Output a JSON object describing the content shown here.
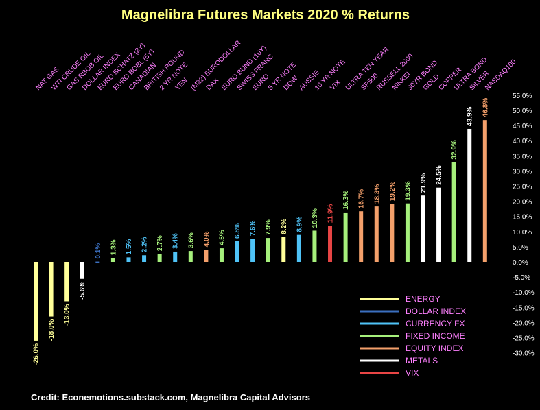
{
  "chart_data": {
    "type": "bar",
    "title": "Magnelibra Futures Markets 2020 % Returns",
    "credit": "Credit: Econemotions.substack.com, Magnelibra Capital Advisors",
    "ylim": [
      -30,
      55
    ],
    "yticks": [
      -30,
      -25,
      -20,
      -15,
      -10,
      -5,
      0,
      5,
      10,
      15,
      20,
      25,
      30,
      35,
      40,
      45,
      50,
      55
    ],
    "y_axis_position": "right",
    "grid": false,
    "legend_placement": "bottom-right",
    "colors": {
      "ENERGY": "#ffff99",
      "DOLLAR INDEX": "#3b6fbf",
      "CURRENCY FX": "#4fc3f7",
      "FIXED INCOME": "#a6f07c",
      "EQUITY INDEX": "#f4a06b",
      "METALS": "#ffffff",
      "VIX": "#e84545"
    },
    "legend": [
      "ENERGY",
      "DOLLAR INDEX",
      "CURRENCY FX",
      "FIXED INCOME",
      "EQUITY INDEX",
      "METALS",
      "VIX"
    ],
    "bars": [
      {
        "label": "NAT GAS",
        "value": -26.0,
        "group": "ENERGY",
        "text": "-26.0%"
      },
      {
        "label": "WTI CRUDE OIL",
        "value": -18.0,
        "group": "ENERGY",
        "text": "-18.0%"
      },
      {
        "label": "GAS RBOB OIL",
        "value": -13.0,
        "group": "ENERGY",
        "text": "-13.0%"
      },
      {
        "label": "DOLLAR INDEX",
        "value": -5.6,
        "group": "METALS",
        "text": "-5.6%"
      },
      {
        "label": "EURO SCHATZ (2Y)",
        "value": 0.1,
        "group": "DOLLAR INDEX",
        "text": "0.1%"
      },
      {
        "label": "EURO BOBL (5Y)",
        "value": 1.3,
        "group": "FIXED INCOME",
        "text": "1.3%"
      },
      {
        "label": "CANADIAN",
        "value": 1.5,
        "group": "CURRENCY FX",
        "text": "1.5%"
      },
      {
        "label": "BRITISH POUND",
        "value": 2.2,
        "group": "CURRENCY FX",
        "text": "2.2%"
      },
      {
        "label": "2 YR NOTE",
        "value": 2.7,
        "group": "FIXED INCOME",
        "text": "2.7%"
      },
      {
        "label": "YEN",
        "value": 3.4,
        "group": "CURRENCY FX",
        "text": "3.4%"
      },
      {
        "label": "(M22) EURODOLLAR",
        "value": 3.6,
        "group": "FIXED INCOME",
        "text": "3.6%"
      },
      {
        "label": "DAX",
        "value": 4.0,
        "group": "EQUITY INDEX",
        "text": "4.0%"
      },
      {
        "label": "EURO BUND (10Y)",
        "value": 4.5,
        "group": "FIXED INCOME",
        "text": "4.5%"
      },
      {
        "label": "SWISS FRANC",
        "value": 6.8,
        "group": "CURRENCY FX",
        "text": "6.8%"
      },
      {
        "label": "EURO",
        "value": 7.6,
        "group": "CURRENCY FX",
        "text": "7.6%"
      },
      {
        "label": "5 YR NOTE",
        "value": 7.9,
        "group": "FIXED INCOME",
        "text": "7.9%"
      },
      {
        "label": "DOW",
        "value": 8.2,
        "group": "ENERGY",
        "text": "8.2%"
      },
      {
        "label": "AUSSIE",
        "value": 8.9,
        "group": "CURRENCY FX",
        "text": "8.9%"
      },
      {
        "label": "10 YR NOTE",
        "value": 10.3,
        "group": "FIXED INCOME",
        "text": "10.3%"
      },
      {
        "label": "VIX",
        "value": 11.9,
        "group": "VIX",
        "text": "11.9%"
      },
      {
        "label": "ULTRA TEN YEAR",
        "value": 16.3,
        "group": "FIXED INCOME",
        "text": "16.3%"
      },
      {
        "label": "SP500",
        "value": 16.7,
        "group": "EQUITY INDEX",
        "text": "16.7%"
      },
      {
        "label": "RUSSELL 2000",
        "value": 18.3,
        "group": "EQUITY INDEX",
        "text": "18.3%"
      },
      {
        "label": "NIKKEI",
        "value": 19.2,
        "group": "EQUITY INDEX",
        "text": "19.2%"
      },
      {
        "label": "30YR BOND",
        "value": 19.3,
        "group": "FIXED INCOME",
        "text": "19.3%"
      },
      {
        "label": "GOLD",
        "value": 21.9,
        "group": "METALS",
        "text": "21.9%"
      },
      {
        "label": "COPPER",
        "value": 24.5,
        "group": "METALS",
        "text": "24.5%"
      },
      {
        "label": "ULTRA BOND",
        "value": 32.9,
        "group": "FIXED INCOME",
        "text": "32.9%"
      },
      {
        "label": "SILVER",
        "value": 43.9,
        "group": "METALS",
        "text": "43.9%"
      },
      {
        "label": "NASDAQ100",
        "value": 46.8,
        "group": "EQUITY INDEX",
        "text": "46.8%"
      }
    ]
  }
}
